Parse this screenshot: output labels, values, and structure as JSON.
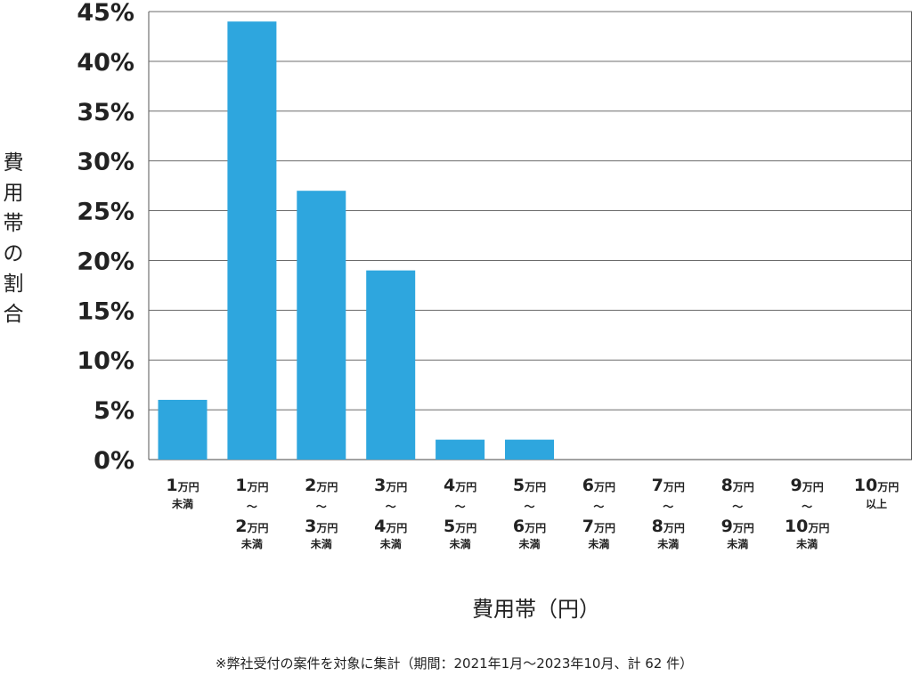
{
  "chart_data": {
    "type": "bar",
    "title": "",
    "ylabel": "費用帯の割合",
    "xlabel": "費用帯（円）",
    "ylim": [
      0,
      45
    ],
    "yticks": [
      0,
      5,
      10,
      15,
      20,
      25,
      30,
      35,
      40,
      45
    ],
    "ytick_suffix": "%",
    "grid": true,
    "bar_color": "#2ea6de",
    "categories": [
      {
        "low": "1万円",
        "tilde": "",
        "high": "",
        "note": "未満"
      },
      {
        "low": "1万円",
        "tilde": "〜",
        "high": "2万円",
        "note": "未満"
      },
      {
        "low": "2万円",
        "tilde": "〜",
        "high": "3万円",
        "note": "未満"
      },
      {
        "low": "3万円",
        "tilde": "〜",
        "high": "4万円",
        "note": "未満"
      },
      {
        "low": "4万円",
        "tilde": "〜",
        "high": "5万円",
        "note": "未満"
      },
      {
        "low": "5万円",
        "tilde": "〜",
        "high": "6万円",
        "note": "未満"
      },
      {
        "low": "6万円",
        "tilde": "〜",
        "high": "7万円",
        "note": "未満"
      },
      {
        "low": "7万円",
        "tilde": "〜",
        "high": "8万円",
        "note": "未満"
      },
      {
        "low": "8万円",
        "tilde": "〜",
        "high": "9万円",
        "note": "未満"
      },
      {
        "low": "9万円",
        "tilde": "〜",
        "high": "10万円",
        "note": "未満"
      },
      {
        "low": "10万円",
        "tilde": "",
        "high": "",
        "note": "以上"
      }
    ],
    "values": [
      6,
      44,
      27,
      19,
      2,
      2,
      0,
      0,
      0,
      0,
      0
    ]
  },
  "footnote": "※弊社受付の案件を対象に集計（期間：2021年1月〜2023年10月、計 62 件）"
}
